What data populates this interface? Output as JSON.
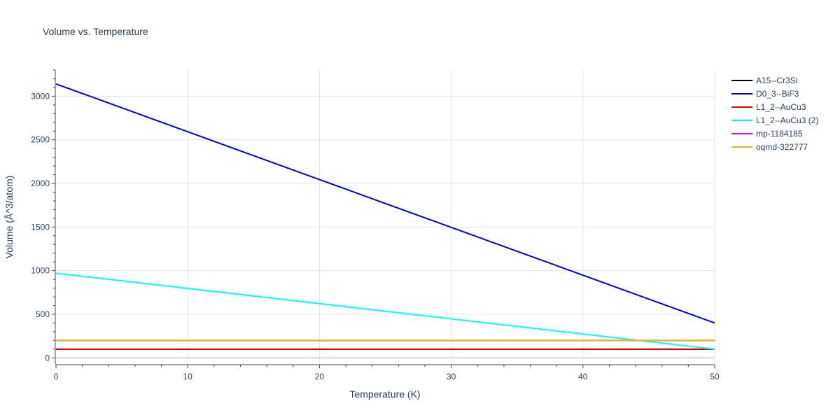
{
  "chart_data": {
    "type": "line",
    "title": "Volume vs. Temperature",
    "xlabel": "Temperature (K)",
    "ylabel": "Volume (Å^3/atom)",
    "xlim": [
      0,
      50
    ],
    "ylim": [
      -70,
      3300
    ],
    "x_ticks": [
      0,
      10,
      20,
      30,
      40,
      50
    ],
    "y_ticks": [
      0,
      500,
      1000,
      1500,
      2000,
      2500,
      3000
    ],
    "x_tick_labels": [
      "0",
      "10",
      "20",
      "30",
      "40",
      "50"
    ],
    "y_tick_labels": [
      "0",
      "500",
      "1000",
      "1500",
      "2000",
      "2500",
      "3000"
    ],
    "grid": true,
    "legend_position": "top-right outside",
    "series": [
      {
        "name": "A15--Cr3Si",
        "color": "#000000",
        "x": [
          0,
          50
        ],
        "values": [
          100,
          100
        ]
      },
      {
        "name": "D0_3--BiF3",
        "color": "#0000dd",
        "x": [
          0,
          50
        ],
        "values": [
          3140,
          400
        ]
      },
      {
        "name": "L1_2--AuCu3",
        "color": "#dd0000",
        "x": [
          0,
          50
        ],
        "values": [
          100,
          100
        ]
      },
      {
        "name": "L1_2--AuCu3 (2)",
        "color": "#00ffff",
        "x": [
          0,
          50
        ],
        "values": [
          970,
          100
        ]
      },
      {
        "name": "mp-1184185",
        "color": "#ee00ee",
        "x": [
          0,
          50
        ],
        "values": [
          200,
          200
        ]
      },
      {
        "name": "oqmd-322777",
        "color": "#e8b80e",
        "x": [
          0,
          50
        ],
        "values": [
          200,
          200
        ]
      }
    ]
  }
}
